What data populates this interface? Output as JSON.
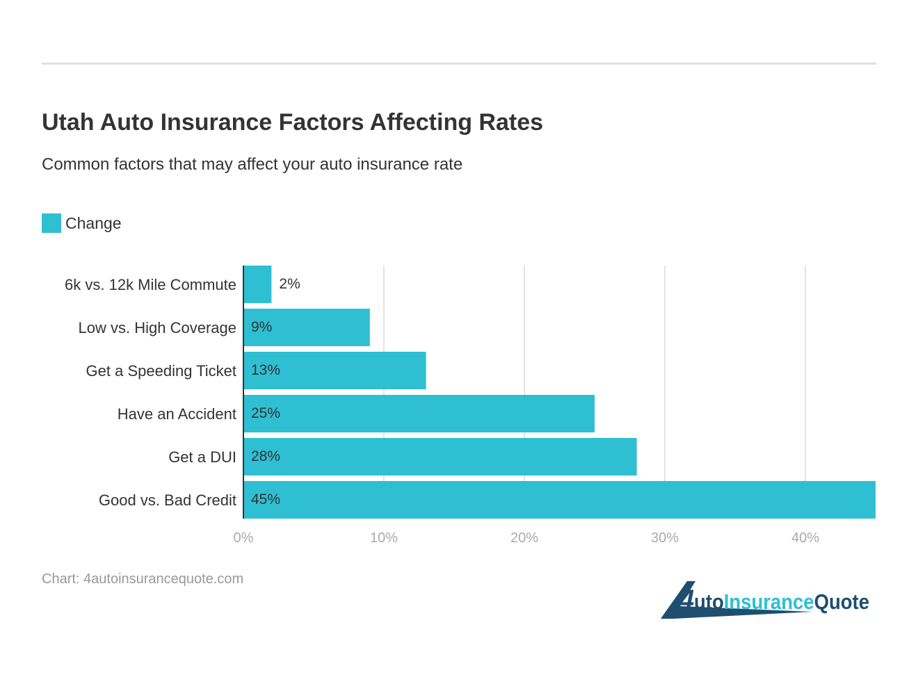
{
  "header": {
    "title": "Utah Auto Insurance Factors Affecting Rates",
    "subtitle": "Common factors that may affect your auto insurance rate"
  },
  "footer": {
    "credit": "Chart: 4autoinsurancequote.com",
    "logo_text": "4AutoInsuranceQuote"
  },
  "chart_data": {
    "type": "bar",
    "orientation": "horizontal",
    "categories": [
      "6k vs. 12k Mile Commute",
      "Low vs. High Coverage",
      "Get a Speeding Ticket",
      "Have an Accident",
      "Get a DUI",
      "Good vs. Bad Credit"
    ],
    "series": [
      {
        "name": "Change",
        "values": [
          2,
          9,
          13,
          25,
          28,
          45
        ],
        "color": "#2ebfd3"
      }
    ],
    "data_labels": [
      "2%",
      "9%",
      "13%",
      "25%",
      "28%",
      "45%"
    ],
    "xlim": [
      0,
      45
    ],
    "xticks": [
      0,
      10,
      20,
      30,
      40
    ],
    "xtick_labels": [
      "0%",
      "10%",
      "20%",
      "30%",
      "40%"
    ],
    "grid": true,
    "legend": "top-left"
  }
}
